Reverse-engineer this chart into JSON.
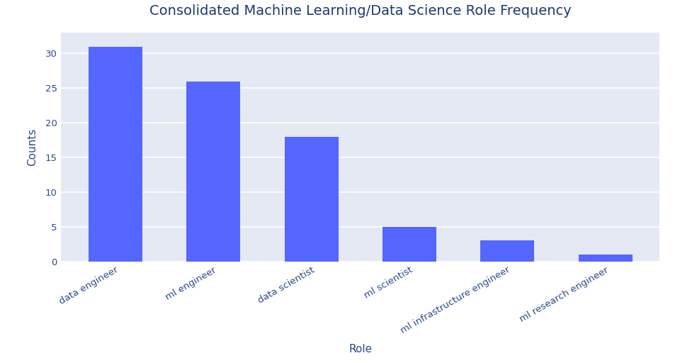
{
  "categories": [
    "data engineer",
    "ml engineer",
    "data scientist",
    "ml scientist",
    "ml infrastructure engineer",
    "ml research engineer"
  ],
  "values": [
    31,
    26,
    18,
    5,
    3,
    1
  ],
  "bar_color": "#5566ff",
  "title": "Consolidated Machine Learning/Data Science Role Frequency",
  "xlabel": "Role",
  "ylabel": "Counts",
  "title_color": "#1e3a6e",
  "label_color": "#2d4a8a",
  "tick_color": "#2d4a8a",
  "axes_bg_color": "#e4e9f4",
  "figure_bg_color": "#ffffff",
  "grid_color": "#ffffff",
  "ylim": [
    0,
    33
  ],
  "yticks": [
    0,
    5,
    10,
    15,
    20,
    25,
    30
  ],
  "title_fontsize": 14,
  "axis_label_fontsize": 11,
  "tick_fontsize": 9.5,
  "bar_width": 0.55,
  "xtick_rotation": 30
}
